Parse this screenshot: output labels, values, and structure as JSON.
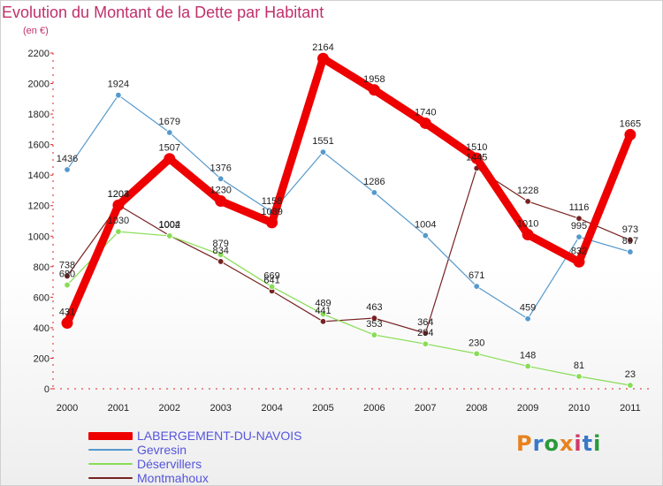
{
  "header": {
    "title": "Evolution du Montant de la Dette par Habitant",
    "subtitle": "(en €)"
  },
  "logo": {
    "text": "Proxiti",
    "colors": [
      "#e8821e",
      "#3a78c8",
      "#2a9a3a",
      "#e8821e",
      "#d03a6a",
      "#3a78c8",
      "#2a9a3a"
    ]
  },
  "chart_data": {
    "type": "line",
    "title": "Evolution du Montant de la Dette par Habitant",
    "subtitle": "(en €)",
    "xlabel": "",
    "ylabel": "",
    "categories": [
      "2000",
      "2001",
      "2002",
      "2003",
      "2004",
      "2005",
      "2006",
      "2007",
      "2008",
      "2009",
      "2010",
      "2011"
    ],
    "ylim": [
      0,
      2200
    ],
    "yticks": [
      0,
      200,
      400,
      600,
      800,
      1000,
      1200,
      1400,
      1600,
      1800,
      2000,
      2200
    ],
    "grid": false,
    "legend_position": "bottom-left",
    "series": [
      {
        "name": "LABERGEMENT-DU-NAVOIS",
        "color": "#ee0000",
        "values": [
          431,
          1203,
          1507,
          1230,
          1089,
          2164,
          1958,
          1740,
          1510,
          1010,
          832,
          1665
        ]
      },
      {
        "name": "Gevresin",
        "color": "#5599cc",
        "values": [
          1436,
          1924,
          1679,
          1376,
          1158,
          1551,
          1286,
          1004,
          671,
          459,
          995,
          897
        ]
      },
      {
        "name": "Déservillers",
        "color": "#88dd55",
        "values": [
          680,
          1030,
          1002,
          879,
          669,
          489,
          353,
          294,
          230,
          148,
          81,
          23
        ]
      },
      {
        "name": "Montmahoux",
        "color": "#772222",
        "values": [
          738,
          1204,
          1004,
          834,
          641,
          441,
          463,
          364,
          1445,
          1228,
          1116,
          973
        ]
      }
    ]
  }
}
